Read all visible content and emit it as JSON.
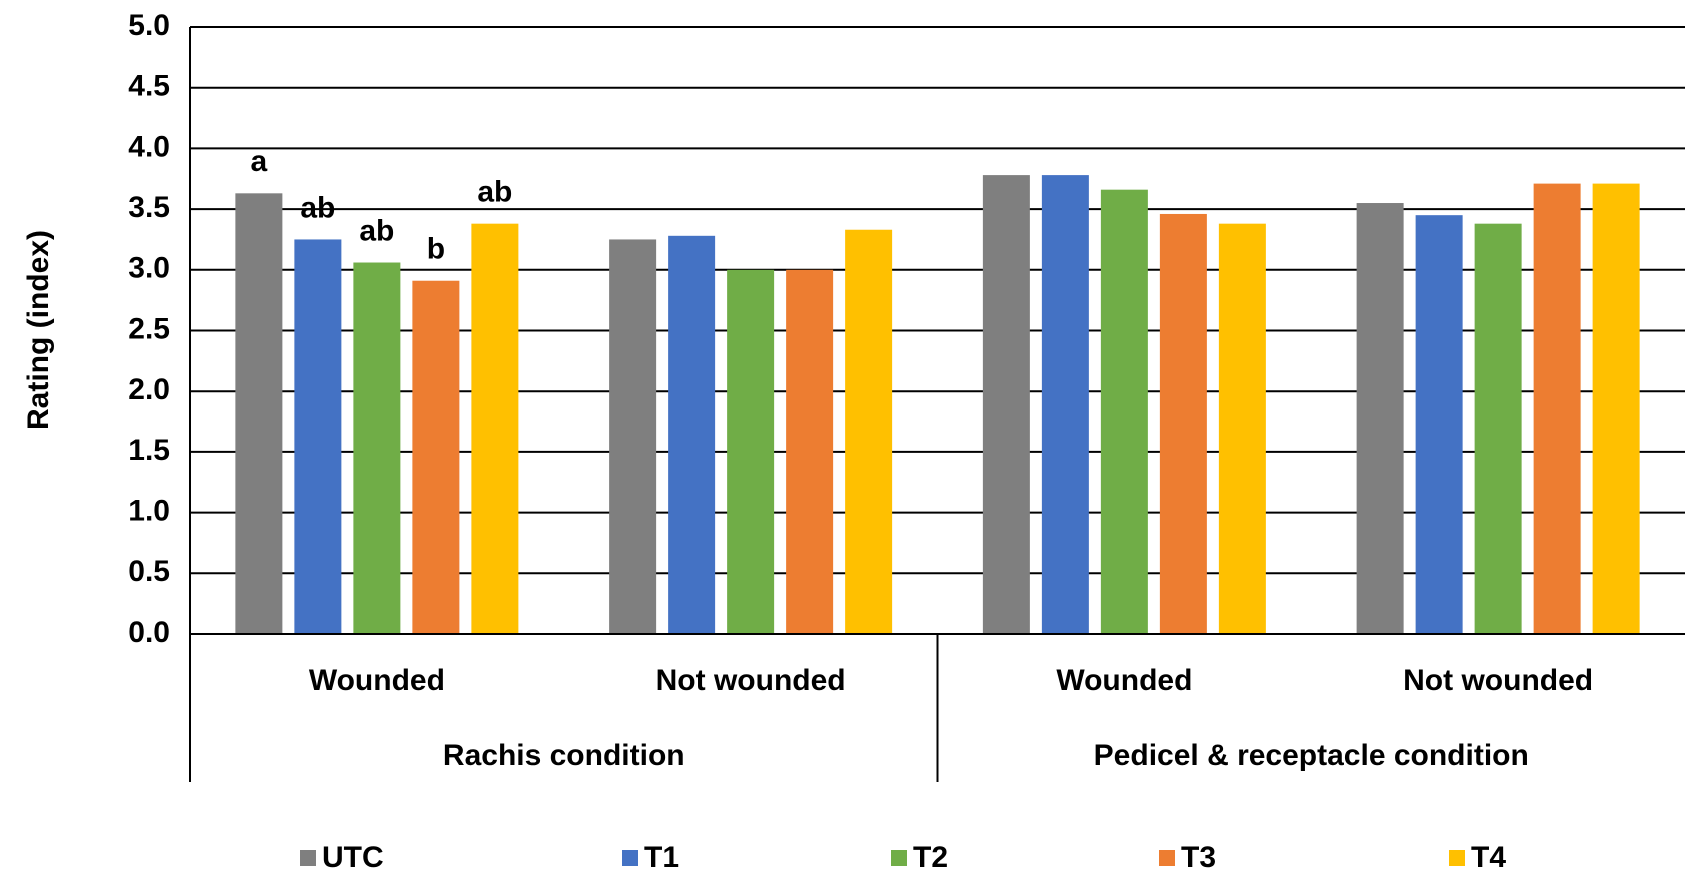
{
  "chart_data": {
    "type": "bar",
    "y_label": "Rating (index)",
    "groups": [
      {
        "label": "Rachis condition",
        "categories": [
          "Wounded",
          "Not wounded"
        ]
      },
      {
        "label": "Pedicel & receptacle condition",
        "categories": [
          "Wounded",
          "Not wounded"
        ]
      }
    ],
    "series": [
      {
        "name": "UTC",
        "color": "#7f7f7f",
        "values": [
          3.63,
          3.25,
          3.78,
          3.55
        ],
        "letters": [
          "a",
          null,
          null,
          null
        ]
      },
      {
        "name": "T1",
        "color": "#4472c4",
        "values": [
          3.25,
          3.28,
          3.78,
          3.45
        ],
        "letters": [
          "ab",
          null,
          null,
          null
        ]
      },
      {
        "name": "T2",
        "color": "#70ad47",
        "values": [
          3.06,
          3.0,
          3.66,
          3.38
        ],
        "letters": [
          "ab",
          null,
          null,
          null
        ]
      },
      {
        "name": "T3",
        "color": "#ed7d31",
        "values": [
          2.91,
          3.0,
          3.46,
          3.71
        ],
        "letters": [
          "b",
          null,
          null,
          null
        ]
      },
      {
        "name": "T4",
        "color": "#ffc000",
        "values": [
          3.38,
          3.33,
          3.38,
          3.71
        ],
        "letters": [
          "ab",
          null,
          null,
          null
        ]
      }
    ],
    "ylim": [
      0,
      5
    ],
    "yticks": [
      {
        "value": 0,
        "label": "0.0"
      },
      {
        "value": 0.5,
        "label": "0.5"
      },
      {
        "value": 1,
        "label": "1.0"
      },
      {
        "value": 1.5,
        "label": "1.5"
      },
      {
        "value": 2,
        "label": "2.0"
      },
      {
        "value": 2.5,
        "label": "2.5"
      },
      {
        "value": 3,
        "label": "3.0"
      },
      {
        "value": 3.5,
        "label": "3.5"
      },
      {
        "value": 4,
        "label": "4.0"
      },
      {
        "value": 4.5,
        "label": "4.5"
      },
      {
        "value": 5,
        "label": "5.0"
      }
    ],
    "grid": true,
    "legend": "bottom"
  }
}
